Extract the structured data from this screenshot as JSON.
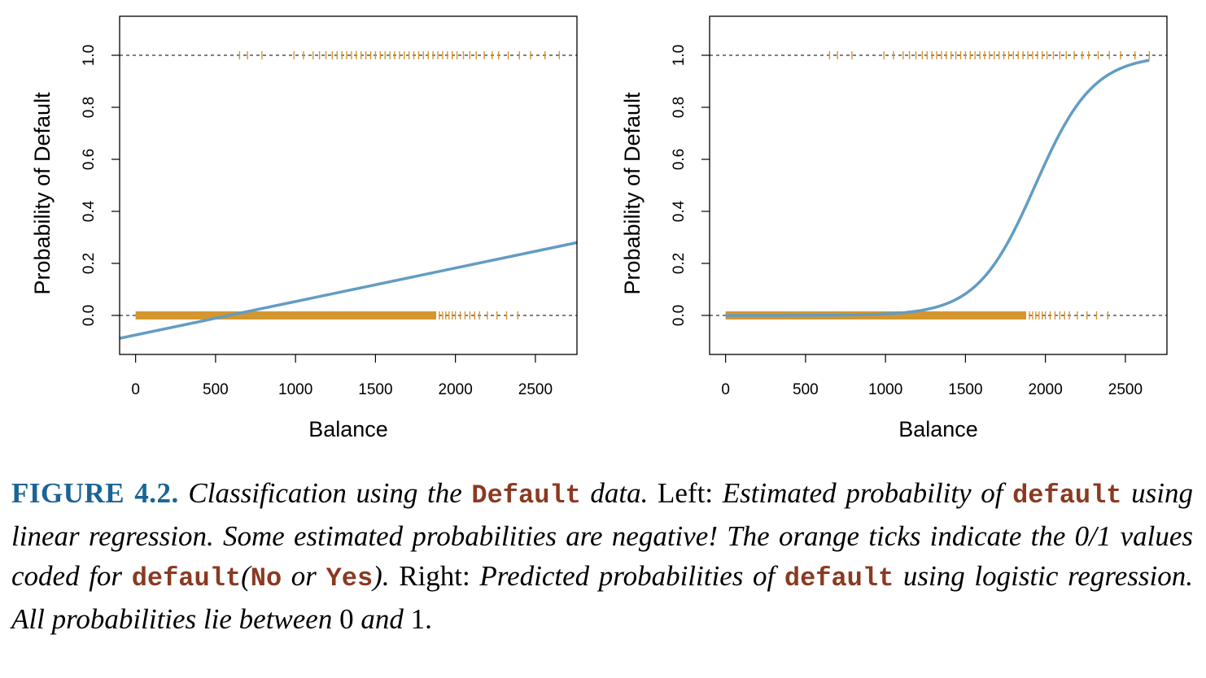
{
  "colors": {
    "rug": "#d4962e",
    "curve": "#639cc2",
    "caption_label": "#1a6496",
    "code": "#8a3a22"
  },
  "chart_data": [
    {
      "type": "line",
      "panel": "left",
      "xlabel": "Balance",
      "ylabel": "Probability of Default",
      "xlim": [
        -100,
        2760
      ],
      "ylim": [
        -0.15,
        1.15
      ],
      "xticks": [
        "0",
        "500",
        "1000",
        "1500",
        "2000",
        "2500"
      ],
      "yticks": [
        "0.0",
        "0.2",
        "0.4",
        "0.6",
        "0.8",
        "1.0"
      ],
      "reference_lines": [
        0,
        1
      ],
      "fit": {
        "method": "linear",
        "x": [
          -100,
          2760
        ],
        "y": [
          -0.088,
          0.28
        ]
      },
      "rug_y1": [
        650,
        700,
        790,
        990,
        1050,
        1110,
        1150,
        1190,
        1230,
        1260,
        1290,
        1320,
        1350,
        1380,
        1410,
        1440,
        1470,
        1500,
        1530,
        1560,
        1590,
        1620,
        1650,
        1680,
        1710,
        1740,
        1770,
        1800,
        1830,
        1860,
        1890,
        1920,
        1950,
        1980,
        2010,
        2050,
        2090,
        2130,
        2180,
        2230,
        2270,
        2330,
        2400,
        2470,
        2560,
        2650
      ],
      "rug_y0_dense_range": [
        0,
        1880
      ],
      "rug_y0_sparse": [
        1900,
        1920,
        1940,
        1960,
        1980,
        2000,
        2030,
        2060,
        2090,
        2120,
        2150,
        2200,
        2260,
        2320,
        2390
      ]
    },
    {
      "type": "line",
      "panel": "right",
      "xlabel": "Balance",
      "ylabel": "Probability of Default",
      "xlim": [
        -100,
        2760
      ],
      "ylim": [
        -0.15,
        1.15
      ],
      "xticks": [
        "0",
        "500",
        "1000",
        "1500",
        "2000",
        "2500"
      ],
      "yticks": [
        "0.0",
        "0.2",
        "0.4",
        "0.6",
        "0.8",
        "1.0"
      ],
      "reference_lines": [
        0,
        1
      ],
      "fit": {
        "method": "logistic",
        "b0": -10.65,
        "b1": 0.0055,
        "x_range": [
          0,
          2650
        ]
      },
      "rug_y1": [
        650,
        700,
        790,
        990,
        1050,
        1110,
        1150,
        1190,
        1230,
        1260,
        1290,
        1320,
        1350,
        1380,
        1410,
        1440,
        1470,
        1500,
        1530,
        1560,
        1590,
        1620,
        1650,
        1680,
        1710,
        1740,
        1770,
        1800,
        1830,
        1860,
        1890,
        1920,
        1950,
        1980,
        2010,
        2050,
        2090,
        2130,
        2180,
        2230,
        2270,
        2330,
        2400,
        2470,
        2560,
        2650
      ],
      "rug_y0_dense_range": [
        0,
        1880
      ],
      "rug_y0_sparse": [
        1900,
        1920,
        1940,
        1960,
        1980,
        2000,
        2030,
        2060,
        2090,
        2120,
        2150,
        2200,
        2260,
        2320,
        2390
      ]
    }
  ],
  "caption": {
    "label": "FIGURE 4.2.",
    "p1": " Classification using the ",
    "code1": "Default",
    "p2": " data.",
    "p3": " Left: ",
    "p4": "Estimated probability of ",
    "code2": "default",
    "p5": " using linear regression. Some estimated probabilities are negative! The orange ticks indicate the 0/1 values coded for ",
    "code3": "default",
    "p6": "(",
    "code4": "No",
    "p7": " or ",
    "code5": "Yes",
    "p8": ").",
    "p9": " Right: ",
    "p10": "Predicted probabilities of ",
    "code6": "default",
    "p11": " using logistic regression. All probabilities lie between ",
    "n0": "0",
    "p12": " and ",
    "n1": "1",
    "p13": "."
  }
}
